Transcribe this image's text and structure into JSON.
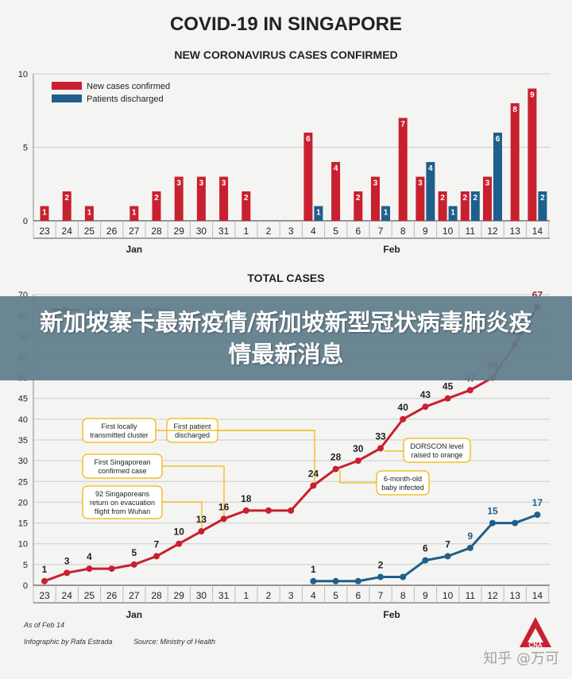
{
  "page": {
    "title": "COVID-19 IN SINGAPORE",
    "banner": "新加坡寨卡最新疫情/新加坡新型冠状病毒肺炎疫情最新消息",
    "as_of": "As of Feb 14",
    "credit": "Infographic by Rafa Estrada",
    "source": "Source: Ministry of Health",
    "watermark": "知乎 @万可",
    "logo": "CNA",
    "colors": {
      "red": "#c8202f",
      "blue": "#1f5f8b",
      "text": "#222222",
      "grid": "#cccccc",
      "note_border": "#f2c12e",
      "banner": "#607d8c"
    }
  },
  "chart_data": [
    {
      "type": "bar",
      "title": "NEW CORONAVIRUS CASES CONFIRMED",
      "categories": [
        "23",
        "24",
        "25",
        "26",
        "27",
        "28",
        "29",
        "30",
        "31",
        "1",
        "2",
        "3",
        "4",
        "5",
        "6",
        "7",
        "8",
        "9",
        "10",
        "11",
        "12",
        "13",
        "14"
      ],
      "month_labels": [
        {
          "label": "Jan",
          "from": 0,
          "to": 8
        },
        {
          "label": "Feb",
          "from": 9,
          "to": 22
        }
      ],
      "ylim": [
        0,
        10
      ],
      "yticks": [
        0,
        5,
        10
      ],
      "grid": true,
      "legend_position": "top-left",
      "series": [
        {
          "name": "New cases confirmed",
          "color": "#c8202f",
          "values": [
            1,
            2,
            1,
            0,
            1,
            2,
            3,
            3,
            3,
            2,
            0,
            0,
            6,
            4,
            2,
            3,
            7,
            3,
            2,
            2,
            3,
            8,
            9
          ]
        },
        {
          "name": "Patients discharged",
          "color": "#1f5f8b",
          "values": [
            0,
            0,
            0,
            0,
            0,
            0,
            0,
            0,
            0,
            0,
            0,
            0,
            1,
            0,
            0,
            1,
            0,
            4,
            1,
            2,
            6,
            0,
            2
          ]
        }
      ]
    },
    {
      "type": "line",
      "title": "TOTAL CASES",
      "categories": [
        "23",
        "24",
        "25",
        "26",
        "27",
        "28",
        "29",
        "30",
        "31",
        "1",
        "2",
        "3",
        "4",
        "5",
        "6",
        "7",
        "8",
        "9",
        "10",
        "11",
        "12",
        "13",
        "14"
      ],
      "month_labels": [
        {
          "label": "Jan",
          "from": 0,
          "to": 8
        },
        {
          "label": "Feb",
          "from": 9,
          "to": 22
        }
      ],
      "ylim": [
        0,
        70
      ],
      "yticks": [
        0,
        5,
        10,
        15,
        20,
        25,
        30,
        35,
        40,
        45,
        50,
        55,
        60,
        65,
        70
      ],
      "grid": true,
      "legend_position": "top-left",
      "legend": [
        {
          "name": "Total cases confirmed",
          "color": "#8a2a33"
        }
      ],
      "series": [
        {
          "name": "Total cases confirmed",
          "color": "#c8202f",
          "values": [
            1,
            3,
            4,
            4,
            5,
            7,
            10,
            13,
            16,
            18,
            18,
            18,
            24,
            28,
            30,
            33,
            40,
            43,
            45,
            47,
            50,
            58,
            67
          ]
        },
        {
          "name": "",
          "color": "#1f5f8b",
          "values": [
            null,
            null,
            null,
            null,
            null,
            null,
            null,
            null,
            null,
            null,
            null,
            null,
            1,
            1,
            1,
            2,
            2,
            6,
            7,
            9,
            15,
            15,
            17
          ]
        }
      ],
      "point_labels": {
        "red": [
          1,
          3,
          4,
          null,
          5,
          7,
          10,
          13,
          16,
          18,
          null,
          null,
          24,
          28,
          30,
          33,
          40,
          43,
          45,
          47,
          50,
          58,
          67
        ],
        "blue": [
          null,
          null,
          null,
          null,
          null,
          null,
          null,
          null,
          null,
          null,
          null,
          null,
          1,
          null,
          null,
          2,
          null,
          6,
          7,
          9,
          15,
          null,
          17
        ]
      },
      "annotations": [
        {
          "text": "First locally transmitted cluster",
          "lines": [
            "First locally",
            "transmitted cluster"
          ],
          "target": 12
        },
        {
          "text": "First patient discharged",
          "lines": [
            "First patient",
            "discharged"
          ],
          "target": 12
        },
        {
          "text": "First Singaporean confirmed case",
          "lines": [
            "First Singaporean",
            "confirmed case"
          ],
          "target": 8
        },
        {
          "text": "92 Singaporeans return on evacuation flight from Wuhan",
          "lines": [
            "92 Singaporeans",
            "return on evacuation",
            "flight from Wuhan"
          ],
          "target": 7
        },
        {
          "text": "DORSCON level raised to orange",
          "lines": [
            "DORSCON level",
            "raised to orange"
          ],
          "target": 15
        },
        {
          "text": "6-month-old baby infected",
          "lines": [
            "6-month-old",
            "baby infected"
          ],
          "target": 13
        }
      ]
    }
  ]
}
